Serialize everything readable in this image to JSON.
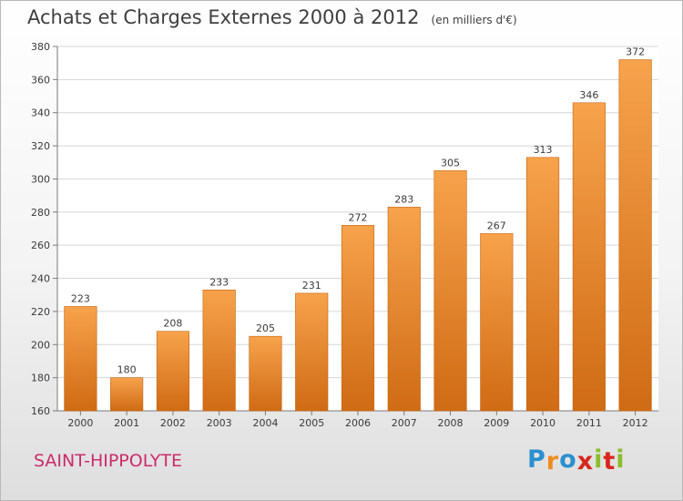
{
  "chart_data": {
    "type": "bar",
    "title": "Achats et Charges Externes 2000 à 2012",
    "subtitle": "(en milliers d'€)",
    "categories": [
      "2000",
      "2001",
      "2002",
      "2003",
      "2004",
      "2005",
      "2006",
      "2007",
      "2008",
      "2009",
      "2010",
      "2011",
      "2012"
    ],
    "values": [
      223,
      180,
      208,
      233,
      205,
      231,
      272,
      283,
      305,
      267,
      313,
      346,
      372
    ],
    "ylim": [
      160,
      380
    ],
    "yticks": [
      160,
      180,
      200,
      220,
      240,
      260,
      280,
      300,
      320,
      340,
      360,
      380
    ],
    "grid": true,
    "bar_color_top": "#f7a24c",
    "bar_color_bottom": "#cf6b14"
  },
  "commune": "SAINT-HIPPOLYTE",
  "logo": {
    "letters": [
      "P",
      "r",
      "o",
      "x",
      "i",
      "t",
      "i"
    ],
    "colors": [
      "#2c8fd0",
      "#f08a1f",
      "#2c8fd0",
      "#d9261c",
      "#8bbd2a",
      "#d9261c",
      "#8bbd2a"
    ]
  }
}
